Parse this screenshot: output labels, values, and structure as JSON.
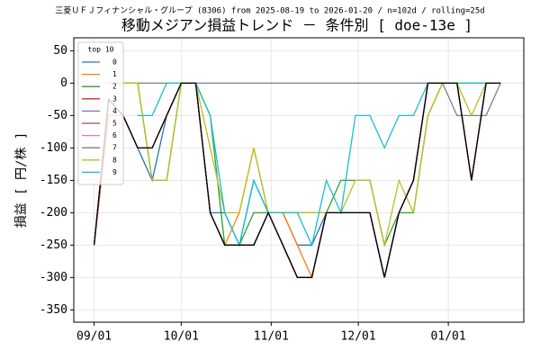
{
  "chart_data": {
    "type": "line",
    "title": "移動メジアン損益トレンド － 条件別 [ doe-13e ]",
    "subtitle": "三菱ＵＦＪフィナンシャル・グループ (8306) from 2025-08-19 to 2026-01-20 / n=102d / rolling=25d",
    "y_label": "損益 [ 円/株 ]",
    "legend_title": "top 10",
    "legend_position": "upper left",
    "grid": true,
    "xlim": [
      "2025-08-25",
      "2026-01-27"
    ],
    "xticks": [
      {
        "value": "2025-09-01",
        "label": "09/01"
      },
      {
        "value": "2025-10-01",
        "label": "10/01"
      },
      {
        "value": "2025-11-01",
        "label": "11/01"
      },
      {
        "value": "2025-12-01",
        "label": "12/01"
      },
      {
        "value": "2026-01-01",
        "label": "01/01"
      }
    ],
    "ylim": [
      -369,
      70
    ],
    "yticks": [
      50,
      0,
      -50,
      -100,
      -150,
      -200,
      -250,
      -300,
      -350
    ],
    "x": [
      "2025-09-01",
      "2025-09-06",
      "2025-09-11",
      "2025-09-16",
      "2025-09-21",
      "2025-09-26",
      "2025-10-01",
      "2025-10-06",
      "2025-10-11",
      "2025-10-16",
      "2025-10-21",
      "2025-10-26",
      "2025-10-31",
      "2025-11-05",
      "2025-11-10",
      "2025-11-15",
      "2025-11-20",
      "2025-11-25",
      "2025-11-30",
      "2025-12-05",
      "2025-12-10",
      "2025-12-15",
      "2025-12-20",
      "2025-12-25",
      "2025-12-30",
      "2026-01-04",
      "2026-01-09",
      "2026-01-14",
      "2026-01-19"
    ],
    "series": [
      {
        "name": "0",
        "color": "#1f77b4",
        "values": [
          -250,
          -50,
          -50,
          -100,
          -150,
          -50,
          0,
          0,
          -200,
          -200,
          -250,
          -150,
          -200,
          -200,
          -250,
          -250,
          -200,
          -200,
          -200,
          -200,
          -300,
          -200,
          -150,
          0,
          0,
          0,
          -150,
          0,
          0
        ]
      },
      {
        "name": "1",
        "color": "#ff7f0e",
        "values": [
          -250,
          -50,
          -50,
          -100,
          -100,
          -50,
          0,
          0,
          -200,
          -250,
          -200,
          -100,
          -200,
          -200,
          -250,
          -300,
          -200,
          -200,
          -200,
          -200,
          -300,
          -200,
          -150,
          0,
          0,
          0,
          -150,
          0,
          0
        ]
      },
      {
        "name": "2",
        "color": "#2ca02c",
        "values": [
          null,
          0,
          0,
          0,
          -150,
          -150,
          0,
          0,
          -50,
          -250,
          -250,
          -200,
          -200,
          -200,
          -200,
          -200,
          -200,
          -150,
          -150,
          -150,
          -250,
          -200,
          -200,
          -50,
          0,
          0,
          0,
          0,
          0
        ]
      },
      {
        "name": "3",
        "color": "#d62728",
        "values": [
          -250,
          -25,
          -50,
          -100,
          -100,
          -50,
          0,
          0,
          -200,
          -250,
          -250,
          -250,
          -200,
          -250,
          -300,
          -300,
          -200,
          -200,
          -200,
          -200,
          -300,
          -200,
          -150,
          0,
          0,
          0,
          -150,
          0,
          0
        ]
      },
      {
        "name": "4",
        "color": "#9467bd",
        "values": [
          -250,
          -25,
          -50,
          -100,
          -100,
          -50,
          0,
          0,
          -200,
          -250,
          -250,
          -250,
          -200,
          -250,
          -300,
          -300,
          -200,
          -200,
          -200,
          -200,
          -300,
          -200,
          -150,
          0,
          0,
          0,
          -150,
          0,
          0
        ]
      },
      {
        "name": "5",
        "color": "#8c564b",
        "values": [
          -250,
          -25,
          -50,
          -100,
          -100,
          -50,
          0,
          0,
          -200,
          -250,
          -250,
          -250,
          -200,
          -250,
          -300,
          -300,
          -200,
          -200,
          -200,
          -200,
          -300,
          -200,
          -150,
          0,
          0,
          0,
          -150,
          0,
          0
        ]
      },
      {
        "name": "6",
        "color": "#e377c2",
        "values": [
          -250,
          -25,
          -50,
          -100,
          -100,
          -50,
          0,
          0,
          -200,
          -250,
          -250,
          -250,
          -200,
          -250,
          -300,
          -300,
          -200,
          -200,
          -200,
          -200,
          -300,
          -200,
          -150,
          0,
          0,
          0,
          -150,
          0,
          0
        ]
      },
      {
        "name": "7",
        "color": "#7f7f7f",
        "values": [
          null,
          0,
          0,
          0,
          0,
          0,
          0,
          0,
          0,
          0,
          0,
          0,
          0,
          0,
          0,
          0,
          0,
          0,
          0,
          0,
          0,
          0,
          0,
          0,
          0,
          -50,
          -50,
          -50,
          0
        ]
      },
      {
        "name": "8",
        "color": "#bcbd22",
        "values": [
          null,
          0,
          0,
          0,
          -150,
          -150,
          0,
          0,
          -100,
          -200,
          -200,
          -100,
          -200,
          -200,
          -200,
          -200,
          -200,
          -200,
          -150,
          -150,
          -250,
          -150,
          -200,
          -50,
          0,
          0,
          -50,
          0,
          0
        ]
      },
      {
        "name": "9",
        "color": "#17becf",
        "values": [
          null,
          null,
          null,
          -50,
          -50,
          0,
          0,
          0,
          -50,
          -200,
          -250,
          -150,
          -200,
          -200,
          -200,
          -250,
          -150,
          -200,
          -50,
          -50,
          -100,
          -50,
          -50,
          0,
          0,
          0,
          0,
          0,
          0
        ]
      },
      {
        "color": "#000000",
        "values": [
          -250,
          -25,
          -50,
          -100,
          -100,
          -50,
          0,
          0,
          -200,
          -250,
          -250,
          -250,
          -200,
          -250,
          -300,
          -300,
          -200,
          -200,
          -200,
          -200,
          -300,
          -200,
          -150,
          0,
          0,
          0,
          -150,
          0,
          0
        ]
      }
    ]
  }
}
